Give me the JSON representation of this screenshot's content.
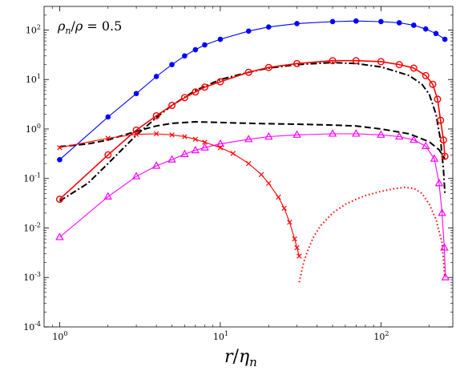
{
  "chart_data": {
    "type": "line",
    "title": "",
    "xscale": "log",
    "yscale": "log",
    "xlim": [
      0.8,
      280
    ],
    "ylim": [
      0.0001,
      300
    ],
    "grid": false,
    "legend": "none",
    "xlabel": {
      "var": "r",
      "slash": "/",
      "sub_var": "η",
      "sub_idx": "n"
    },
    "annotation": {
      "rho": "ρ",
      "sub": "n",
      "slash": "/",
      "rho2": "ρ",
      "eq": " = 0.5"
    },
    "xticks": [
      {
        "base": "10",
        "exp": "0",
        "value": 1
      },
      {
        "base": "10",
        "exp": "1",
        "value": 10
      },
      {
        "base": "10",
        "exp": "2",
        "value": 100
      }
    ],
    "yticks": [
      {
        "base": "10",
        "exp": "-4",
        "value": 0.0001
      },
      {
        "base": "10",
        "exp": "-3",
        "value": 0.001
      },
      {
        "base": "10",
        "exp": "-2",
        "value": 0.01
      },
      {
        "base": "10",
        "exp": "-1",
        "value": 0.1
      },
      {
        "base": "10",
        "exp": "0",
        "value": 1
      },
      {
        "base": "10",
        "exp": "1",
        "value": 10
      },
      {
        "base": "10",
        "exp": "2",
        "value": 100
      }
    ],
    "series": [
      {
        "style": "dashed",
        "color": "#000000",
        "marker": "none",
        "x": [
          1,
          1.5,
          2,
          3,
          4,
          5,
          7,
          10,
          15,
          20,
          30,
          50,
          70,
          100,
          150,
          200,
          230,
          250
        ],
        "y": [
          0.44,
          0.5,
          0.6,
          0.9,
          1.15,
          1.3,
          1.4,
          1.35,
          1.3,
          1.28,
          1.25,
          1.2,
          1.15,
          1.0,
          0.8,
          0.55,
          0.38,
          0.25
        ]
      },
      {
        "style": "dashdot",
        "color": "#000000",
        "marker": "none",
        "x": [
          1,
          1.5,
          2,
          3,
          4,
          5,
          7,
          10,
          15,
          20,
          30,
          50,
          70,
          100,
          150,
          180,
          200,
          220,
          235,
          245,
          250
        ],
        "y": [
          0.035,
          0.08,
          0.2,
          0.75,
          1.7,
          3.0,
          6.0,
          10.0,
          14.0,
          17.0,
          20.0,
          22.0,
          21.0,
          18.0,
          12.0,
          8.0,
          5.0,
          2.0,
          0.6,
          0.15,
          0.05
        ]
      },
      {
        "style": "solid",
        "color": "#0000ff",
        "marker": "dot",
        "x": [
          1,
          2,
          3,
          4,
          5,
          6,
          7,
          8,
          10,
          15,
          20,
          30,
          50,
          70,
          100,
          130,
          160,
          190,
          220,
          250
        ],
        "y": [
          0.24,
          1.75,
          5.2,
          11.5,
          20.0,
          30.0,
          40.0,
          50.0,
          65.0,
          95.0,
          115.0,
          135.0,
          148.0,
          152.0,
          148.0,
          140.0,
          125.0,
          105.0,
          85.0,
          65.0
        ]
      },
      {
        "style": "solid",
        "color": "#ff0000",
        "marker": "circle",
        "x": [
          1,
          2,
          3,
          4,
          5,
          6,
          7,
          8,
          10,
          15,
          20,
          30,
          50,
          70,
          100,
          130,
          160,
          190,
          210,
          225,
          235,
          245,
          250
        ],
        "y": [
          0.038,
          0.3,
          0.95,
          1.85,
          3.0,
          4.3,
          5.6,
          7.0,
          9.0,
          14.0,
          17.5,
          21.0,
          24.0,
          24.0,
          23.0,
          20.0,
          17.0,
          12.0,
          8.0,
          4.0,
          1.5,
          0.6,
          0.28
        ]
      },
      {
        "style": "solid",
        "color": "#ff00ff",
        "marker": "triangle",
        "x": [
          1,
          2,
          3,
          4,
          5,
          6,
          7,
          8,
          10,
          15,
          20,
          30,
          50,
          70,
          100,
          130,
          160,
          190,
          215,
          230,
          240,
          248,
          252
        ],
        "y": [
          0.0065,
          0.043,
          0.11,
          0.18,
          0.24,
          0.31,
          0.37,
          0.42,
          0.5,
          0.62,
          0.7,
          0.76,
          0.8,
          0.8,
          0.76,
          0.7,
          0.6,
          0.45,
          0.25,
          0.08,
          0.02,
          0.004,
          0.001
        ]
      },
      {
        "style": "solid",
        "color": "#ff0000",
        "marker": "cross",
        "x": [
          1,
          2,
          3,
          4,
          5,
          6,
          7,
          8,
          10,
          12,
          15,
          18,
          20,
          23,
          25,
          27,
          29,
          30,
          31
        ],
        "y": [
          0.42,
          0.65,
          0.78,
          0.8,
          0.76,
          0.7,
          0.62,
          0.54,
          0.42,
          0.32,
          0.2,
          0.12,
          0.08,
          0.042,
          0.025,
          0.013,
          0.006,
          0.004,
          0.0027
        ]
      },
      {
        "style": "dotted",
        "color": "#ff0000",
        "marker": "none",
        "x": [
          31,
          32,
          33,
          35,
          38,
          42,
          50,
          60,
          70,
          80,
          100,
          120,
          140,
          160,
          180,
          200,
          220,
          240,
          250
        ],
        "y": [
          0.0008,
          0.0013,
          0.002,
          0.0035,
          0.0065,
          0.011,
          0.02,
          0.03,
          0.038,
          0.045,
          0.055,
          0.062,
          0.066,
          0.063,
          0.05,
          0.03,
          0.015,
          0.005,
          0.001
        ]
      }
    ]
  }
}
